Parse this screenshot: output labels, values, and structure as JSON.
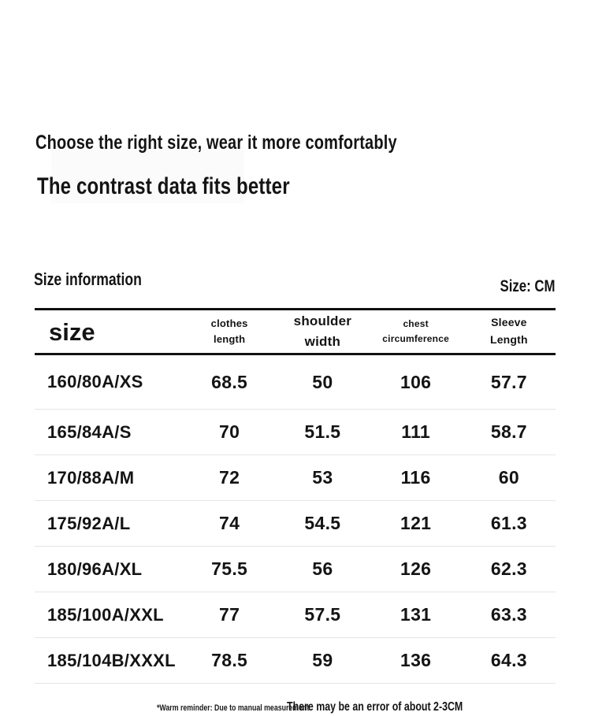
{
  "page": {
    "heading1": "Choose the right size, wear it more comfortably",
    "heading2": "The contrast data fits better",
    "section_label": "Size information",
    "unit_label": "Size: CM"
  },
  "table": {
    "headers": {
      "size": "size",
      "clothes_length": "clothes\nlength",
      "shoulder_width": "shoulder\nwidth",
      "chest_circumference": "chest\ncircumference",
      "sleeve_length": "Sleeve\nLength"
    },
    "rows": [
      {
        "size": "160/80A/XS",
        "clothes_length": "68.5",
        "shoulder_width": "50",
        "chest_circumference": "106",
        "sleeve_length": "57.7"
      },
      {
        "size": "165/84A/S",
        "clothes_length": "70",
        "shoulder_width": "51.5",
        "chest_circumference": "111",
        "sleeve_length": "58.7"
      },
      {
        "size": "170/88A/M",
        "clothes_length": "72",
        "shoulder_width": "53",
        "chest_circumference": "116",
        "sleeve_length": "60"
      },
      {
        "size": "175/92A/L",
        "clothes_length": "74",
        "shoulder_width": "54.5",
        "chest_circumference": "121",
        "sleeve_length": "61.3"
      },
      {
        "size": "180/96A/XL",
        "clothes_length": "75.5",
        "shoulder_width": "56",
        "chest_circumference": "126",
        "sleeve_length": "62.3"
      },
      {
        "size": "185/100A/XXL",
        "clothes_length": "77",
        "shoulder_width": "57.5",
        "chest_circumference": "131",
        "sleeve_length": "63.3"
      },
      {
        "size": "185/104B/XXXL",
        "clothes_length": "78.5",
        "shoulder_width": "59",
        "chest_circumference": "136",
        "sleeve_length": "64.3"
      }
    ]
  },
  "footer": {
    "reminder_small": "*Warm reminder: Due to manual measurement",
    "reminder_large": "There may be an error of about 2-3CM"
  },
  "colors": {
    "text": "#141414",
    "table_border": "#111111",
    "row_divider": "#e5e5e5",
    "background": "#ffffff"
  }
}
